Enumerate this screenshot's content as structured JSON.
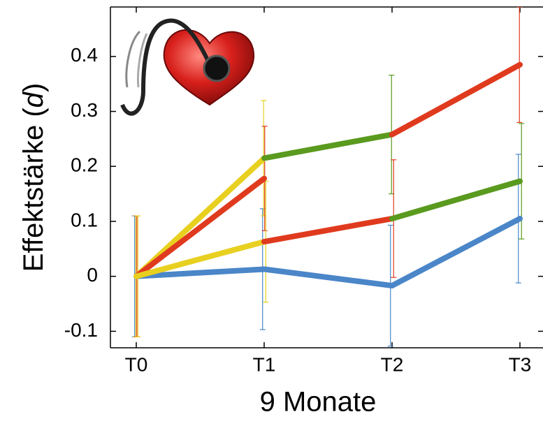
{
  "chart_data": {
    "type": "line",
    "ylabel_parts": [
      "Effektstärke (",
      "d",
      ")"
    ],
    "xlabel": "9 Monate",
    "categories": [
      "T0",
      "T1",
      "T2",
      "T3"
    ],
    "ylim": [
      -0.13,
      0.49
    ],
    "yticks": [
      -0.1,
      0,
      0.1,
      0.2,
      0.3,
      0.4
    ],
    "series": [
      {
        "values": [
          0,
          0.013,
          -0.017,
          0.105
        ],
        "errors": [
          0.11,
          0.11,
          0.11,
          0.117
        ],
        "segment_colors": [
          "#4a86c8",
          "#4a86c8",
          "#4a86c8"
        ]
      },
      {
        "values": [
          0,
          0.215,
          0.258,
          0.385
        ],
        "errors": [
          0.11,
          0.105,
          0.108,
          0.105
        ],
        "segment_colors": [
          "#e8d020",
          "#5a9a1e",
          "#e03a1e"
        ]
      },
      {
        "values": [
          0,
          0.178,
          null,
          null
        ],
        "errors": [
          0.11,
          0.095,
          null,
          null
        ],
        "segment_colors": [
          "#e03a1e"
        ]
      },
      {
        "values": [
          0,
          0.063,
          0.105,
          0.173
        ],
        "errors": [
          0.11,
          0.11,
          0.107,
          0.105
        ],
        "segment_colors": [
          "#e8d020",
          "#e03a1e",
          "#5a9a1e"
        ]
      }
    ]
  }
}
